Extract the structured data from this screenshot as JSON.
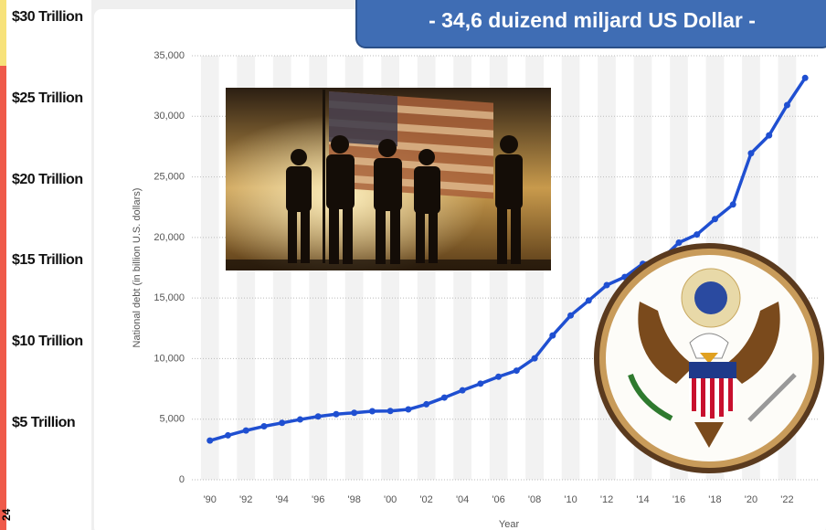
{
  "banner": "-  34,6 duizend miljard US Dollar  -",
  "side_scale": [
    "$30 Trillion",
    "$25 Trillion",
    "$20 Trillion",
    "$15 Trillion",
    "$10 Trillion",
    "$5 Trillion"
  ],
  "corner_label": "24",
  "chart_data": {
    "type": "line",
    "y_label": "National debt (in billion U.S. dollars)",
    "x_label": "Year",
    "x": [
      1990,
      1991,
      1992,
      1993,
      1994,
      1995,
      1996,
      1997,
      1998,
      1999,
      2000,
      2001,
      2002,
      2003,
      2004,
      2005,
      2006,
      2007,
      2008,
      2009,
      2010,
      2011,
      2012,
      2013,
      2014,
      2015,
      2016,
      2017,
      2018,
      2019,
      2020,
      2021,
      2022,
      2023
    ],
    "series": [
      {
        "name": "National debt",
        "color": "#1f4fd1",
        "values": [
          3233,
          3665,
          4065,
          4411,
          4693,
          4974,
          5225,
          5413,
          5526,
          5656,
          5674,
          5807,
          6228,
          6783,
          7379,
          7933,
          8507,
          9008,
          10025,
          11910,
          13562,
          14790,
          16066,
          16738,
          17824,
          18151,
          19573,
          20245,
          21516,
          22719,
          26945,
          28429,
          30929,
          33167
        ]
      }
    ],
    "xlim": [
      1989,
      2023.7
    ],
    "xticks": [
      {
        "value": 1990,
        "label": "'90"
      },
      {
        "value": 1992,
        "label": "'92"
      },
      {
        "value": 1994,
        "label": "'94"
      },
      {
        "value": 1996,
        "label": "'96"
      },
      {
        "value": 1998,
        "label": "'98"
      },
      {
        "value": 2000,
        "label": "'00"
      },
      {
        "value": 2002,
        "label": "'02"
      },
      {
        "value": 2004,
        "label": "'04"
      },
      {
        "value": 2006,
        "label": "'06"
      },
      {
        "value": 2008,
        "label": "'08"
      },
      {
        "value": 2010,
        "label": "'10"
      },
      {
        "value": 2012,
        "label": "'12"
      },
      {
        "value": 2014,
        "label": "'14"
      },
      {
        "value": 2016,
        "label": "'16"
      },
      {
        "value": 2018,
        "label": "'18"
      },
      {
        "value": 2020,
        "label": "'20"
      },
      {
        "value": 2022,
        "label": "'22"
      }
    ],
    "ylim": [
      0,
      35000
    ],
    "yticks": [
      0,
      {
        "value": 5000,
        "label": "5,000"
      },
      {
        "value": 10000,
        "label": "10,000"
      },
      {
        "value": 15000,
        "label": "15,000"
      },
      {
        "value": 20000,
        "label": "20,000"
      },
      {
        "value": 25000,
        "label": "25,000"
      },
      {
        "value": 30000,
        "label": "30,000"
      },
      {
        "value": 35000,
        "label": "35,000"
      }
    ],
    "grid": true
  }
}
